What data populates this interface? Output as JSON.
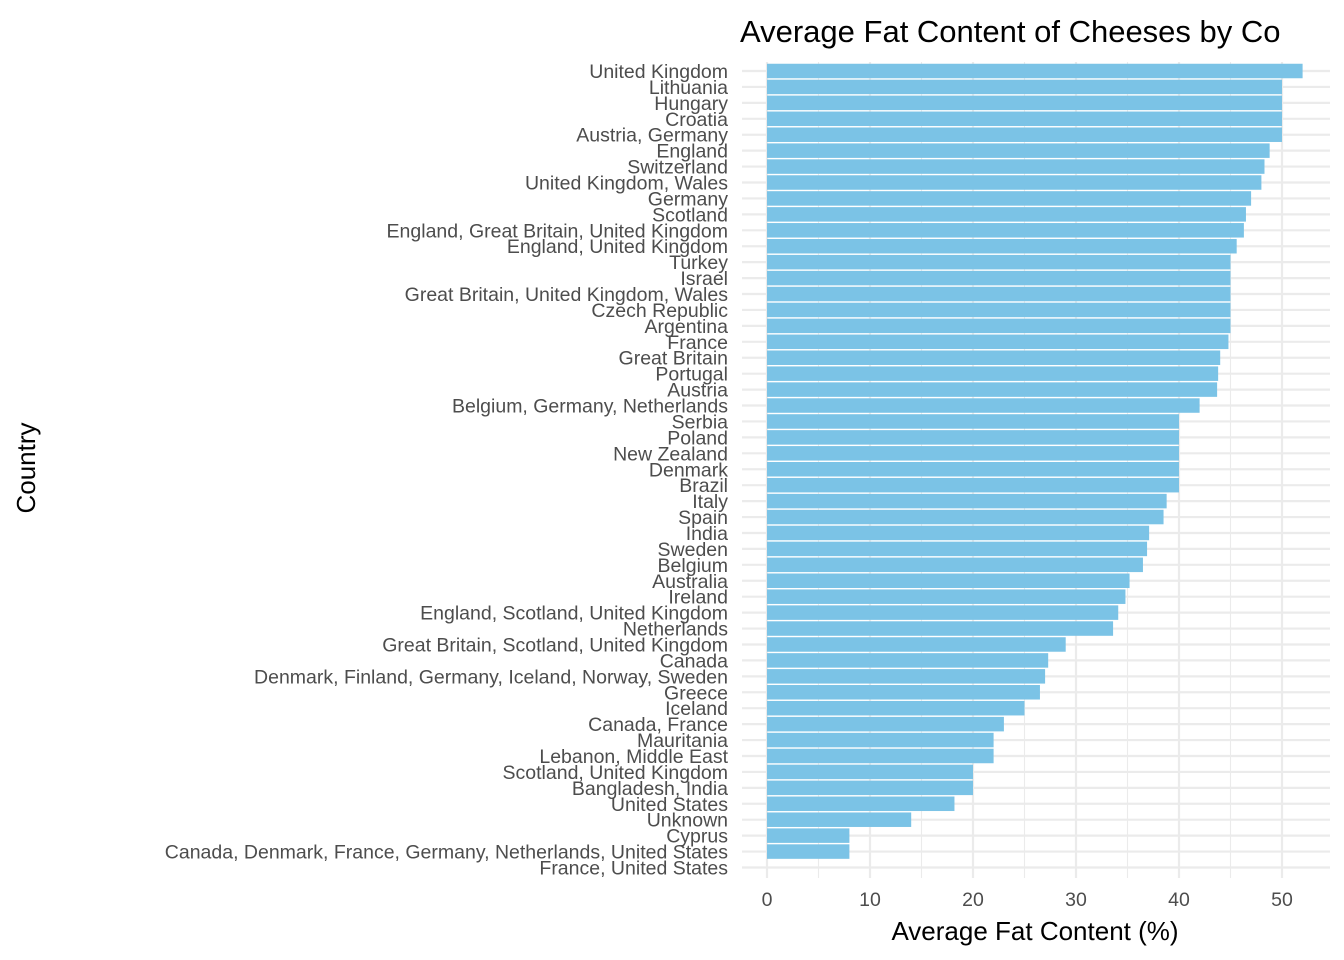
{
  "chart_data": {
    "type": "bar",
    "orientation": "horizontal",
    "title": "Average Fat Content of Cheeses by Co",
    "xlabel": "Average Fat Content (%)",
    "ylabel": "Country",
    "xlim": [
      0,
      54
    ],
    "x_ticks": [
      0,
      10,
      20,
      30,
      40,
      50
    ],
    "grid": true,
    "bar_color": "#7bc3e6",
    "categories": [
      "United Kingdom",
      "Lithuania",
      "Hungary",
      "Croatia",
      "Austria, Germany",
      "England",
      "Switzerland",
      "United Kingdom, Wales",
      "Germany",
      "Scotland",
      "England, Great Britain, United Kingdom",
      "England, United Kingdom",
      "Turkey",
      "Israel",
      "Great Britain, United Kingdom, Wales",
      "Czech Republic",
      "Argentina",
      "France",
      "Great Britain",
      "Portugal",
      "Austria",
      "Belgium, Germany, Netherlands",
      "Serbia",
      "Poland",
      "New Zealand",
      "Denmark",
      "Brazil",
      "Italy",
      "Spain",
      "India",
      "Sweden",
      "Belgium",
      "Australia",
      "Ireland",
      "England, Scotland, United Kingdom",
      "Netherlands",
      "Great Britain, Scotland, United Kingdom",
      "Canada",
      "Denmark, Finland, Germany, Iceland, Norway, Sweden",
      "Greece",
      "Iceland",
      "Canada, France",
      "Mauritania",
      "Lebanon, Middle East",
      "Scotland, United Kingdom",
      "Bangladesh, India",
      "United States",
      "Unknown",
      "Cyprus",
      "Canada, Denmark, France, Germany, Netherlands, United States",
      "France, United States"
    ],
    "values": [
      52,
      50,
      50,
      50,
      50,
      48.8,
      48.3,
      48,
      47,
      46.5,
      46.3,
      45.6,
      45,
      45,
      45,
      45,
      45,
      44.8,
      44,
      43.8,
      43.7,
      42,
      40,
      40,
      40,
      40,
      40,
      38.8,
      38.5,
      37.1,
      36.9,
      36.5,
      35.2,
      34.8,
      34.1,
      33.6,
      29,
      27.3,
      27,
      26.5,
      25,
      23,
      22,
      22,
      20,
      20,
      18.2,
      14,
      8,
      8,
      null
    ]
  }
}
